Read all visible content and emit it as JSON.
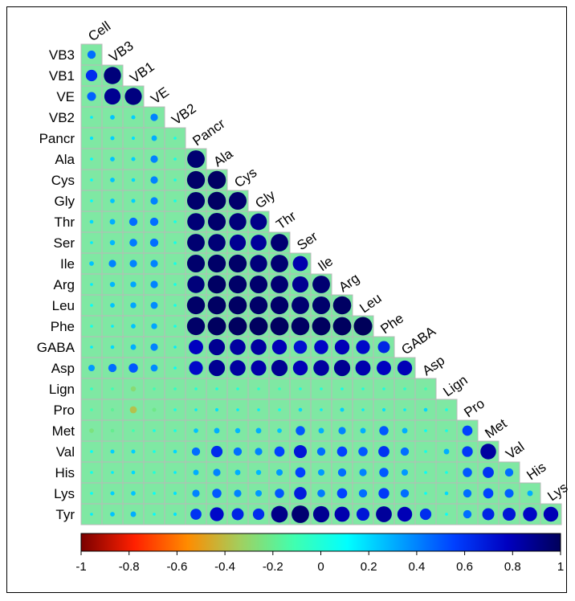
{
  "chart_data": {
    "type": "heatmap",
    "subtype": "lower-triangle correlation matrix (circle size and color encode r)",
    "variables": [
      "Cell",
      "VB3",
      "VB1",
      "VE",
      "VB2",
      "Pancr",
      "Ala",
      "Cys",
      "Gly",
      "Thr",
      "Ser",
      "Ile",
      "Arg",
      "Leu",
      "Phe",
      "GABA",
      "Asp",
      "Lign",
      "Pro",
      "Met",
      "Val",
      "His",
      "Lys",
      "Tyr"
    ],
    "row_labels": [
      "VB3",
      "VB1",
      "VE",
      "VB2",
      "Pancr",
      "Ala",
      "Cys",
      "Gly",
      "Thr",
      "Ser",
      "Ile",
      "Arg",
      "Leu",
      "Phe",
      "GABA",
      "Asp",
      "Lign",
      "Pro",
      "Met",
      "Val",
      "His",
      "Lys",
      "Tyr"
    ],
    "diagonal_labels": [
      "Cell",
      "VB3",
      "VB1",
      "VE",
      "VB2",
      "Pancr",
      "Ala",
      "Cys",
      "Gly",
      "Thr",
      "Ser",
      "Ile",
      "Arg",
      "Leu",
      "Phe",
      "GABA",
      "Asp",
      "Lign",
      "Pro",
      "Met",
      "Val",
      "His",
      "Lys"
    ],
    "matrix": [
      [
        0.45
      ],
      [
        0.62,
        0.93
      ],
      [
        0.48,
        0.88,
        0.92
      ],
      [
        0.15,
        0.25,
        0.22,
        0.4
      ],
      [
        0.18,
        0.22,
        0.18,
        0.3,
        0.05
      ],
      [
        0.12,
        0.25,
        0.22,
        0.4,
        0.05,
        0.95
      ],
      [
        0.12,
        0.25,
        0.2,
        0.4,
        0.05,
        0.97,
        0.98
      ],
      [
        0.12,
        0.25,
        0.22,
        0.4,
        0.05,
        0.96,
        0.98,
        0.96
      ],
      [
        0.2,
        0.3,
        0.45,
        0.45,
        0.05,
        0.94,
        0.96,
        0.93,
        0.9
      ],
      [
        0.15,
        0.28,
        0.42,
        0.45,
        0.05,
        0.95,
        0.94,
        0.88,
        0.86,
        0.95
      ],
      [
        0.25,
        0.4,
        0.4,
        0.4,
        0.05,
        0.96,
        0.97,
        0.97,
        0.93,
        0.95,
        0.82
      ],
      [
        0.15,
        0.28,
        0.32,
        0.4,
        0.05,
        0.93,
        0.98,
        0.97,
        0.96,
        0.95,
        0.88,
        0.95
      ],
      [
        0.1,
        0.25,
        0.32,
        0.38,
        0.05,
        0.97,
        0.98,
        0.98,
        0.97,
        0.97,
        0.95,
        0.96,
        0.98
      ],
      [
        0.05,
        0.15,
        0.25,
        0.32,
        0.05,
        0.97,
        0.99,
        0.99,
        0.99,
        0.99,
        0.98,
        0.99,
        0.99,
        1.0
      ],
      [
        0.15,
        0.2,
        0.3,
        0.4,
        0.15,
        0.78,
        0.88,
        0.85,
        0.85,
        0.8,
        0.72,
        0.76,
        0.8,
        0.75,
        0.65
      ],
      [
        0.35,
        0.45,
        0.5,
        0.38,
        0.1,
        0.75,
        0.88,
        0.85,
        0.83,
        0.88,
        0.8,
        0.85,
        0.88,
        0.82,
        0.78,
        0.8
      ],
      [
        -0.05,
        -0.1,
        -0.28,
        -0.1,
        -0.05,
        0.0,
        0.02,
        0.0,
        -0.02,
        -0.05,
        0.02,
        0.0,
        0.05,
        0.0,
        0.02,
        -0.02,
        -0.1
      ],
      [
        -0.1,
        -0.18,
        -0.38,
        -0.22,
        0.05,
        0.15,
        0.18,
        0.15,
        0.15,
        0.1,
        0.2,
        0.15,
        0.22,
        0.15,
        0.18,
        0.15,
        0.2,
        0.05
      ],
      [
        -0.25,
        -0.2,
        -0.1,
        0.05,
        0.05,
        0.25,
        0.3,
        0.28,
        0.3,
        0.25,
        0.5,
        0.3,
        0.4,
        0.3,
        0.5,
        0.3,
        0.1,
        0.05,
        0.55
      ],
      [
        0.1,
        0.22,
        0.22,
        0.05,
        0.2,
        0.45,
        0.62,
        0.45,
        0.4,
        0.55,
        0.7,
        0.45,
        0.55,
        0.5,
        0.6,
        0.45,
        0.05,
        0.3,
        0.58,
        0.85
      ],
      [
        0.05,
        0.15,
        0.2,
        0.0,
        0.15,
        0.3,
        0.4,
        0.3,
        0.28,
        0.35,
        0.55,
        0.35,
        0.45,
        0.4,
        0.5,
        0.35,
        0.1,
        0.05,
        0.5,
        0.6,
        0.45
      ],
      [
        0.1,
        0.22,
        0.25,
        0.1,
        0.18,
        0.4,
        0.5,
        0.4,
        0.35,
        0.5,
        0.68,
        0.42,
        0.55,
        0.45,
        0.58,
        0.45,
        0.1,
        0.2,
        0.45,
        0.55,
        0.48,
        0.3
      ],
      [
        0.15,
        0.25,
        0.3,
        0.12,
        0.18,
        0.6,
        0.75,
        0.65,
        0.62,
        0.9,
        0.95,
        0.88,
        0.82,
        0.7,
        0.86,
        0.8,
        0.62,
        0.1,
        0.45,
        0.65,
        0.7,
        0.76,
        0.8
      ]
    ],
    "colorbar": {
      "range": [
        -1,
        1
      ],
      "ticks": [
        "-1",
        "-0.8",
        "-0.6",
        "-0.4",
        "-0.2",
        "0",
        "0.2",
        "0.4",
        "0.6",
        "0.8",
        "1"
      ]
    },
    "colors": {
      "cell_background": "#7fe8a3",
      "grid": "#b8b8b8",
      "scale": [
        "#7a0000",
        "#ff2000",
        "#ff8c00",
        "#a0d060",
        "#40ffb0",
        "#00ffff",
        "#00a0ff",
        "#0040ff",
        "#0000c0",
        "#00005a"
      ]
    },
    "grid": true,
    "legend_placement": "bottom"
  }
}
